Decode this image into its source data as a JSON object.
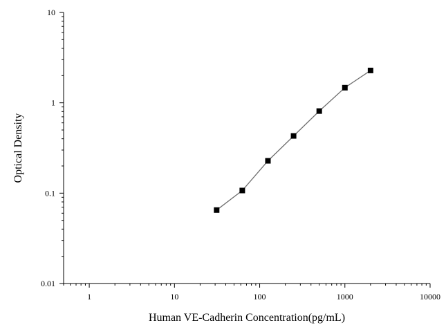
{
  "chart_data": {
    "type": "scatter",
    "title": "",
    "xlabel": "Human VE-Cadherin Concentration(pg/mL)",
    "ylabel": "Optical Density",
    "xscale": "log",
    "yscale": "log",
    "xlim": [
      0.5,
      10000
    ],
    "ylim": [
      0.01,
      10
    ],
    "xticks": [
      {
        "value": 1,
        "label": "1"
      },
      {
        "value": 10,
        "label": "10"
      },
      {
        "value": 100,
        "label": "100"
      },
      {
        "value": 1000,
        "label": "1000"
      },
      {
        "value": 10000,
        "label": "10000"
      }
    ],
    "yticks": [
      {
        "value": 0.01,
        "label": "0.01"
      },
      {
        "value": 0.1,
        "label": "0.1"
      },
      {
        "value": 1,
        "label": "1"
      },
      {
        "value": 10,
        "label": "10"
      }
    ],
    "grid": false,
    "legend": "none",
    "series": [
      {
        "marker": "square",
        "line": "connected",
        "color": "#000000",
        "line_color": "#6e6e6e",
        "x": [
          31.25,
          62.5,
          125,
          250,
          500,
          1000,
          2000
        ],
        "y": [
          0.065,
          0.107,
          0.228,
          0.43,
          0.81,
          1.47,
          2.28
        ]
      }
    ]
  }
}
